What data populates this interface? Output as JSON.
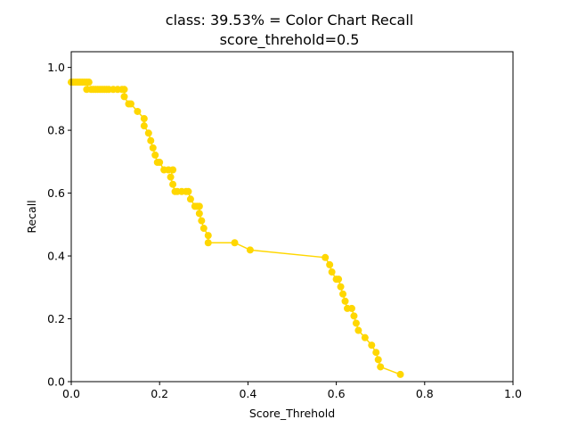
{
  "chart_data": {
    "type": "line",
    "title": "class: 39.53% = Color Chart Recall",
    "subtitle": "score_threhold=0.5",
    "xlabel": "Score_Threhold",
    "ylabel": "Recall",
    "xlim": [
      0.0,
      1.0
    ],
    "ylim": [
      0.0,
      1.05
    ],
    "xticks": [
      "0.0",
      "0.2",
      "0.4",
      "0.6",
      "0.8",
      "1.0"
    ],
    "yticks": [
      "0.0",
      "0.2",
      "0.4",
      "0.6",
      "0.8",
      "1.0"
    ],
    "grid": false,
    "series": [
      {
        "color": "#ffd700",
        "marker": "circle",
        "x": [
          0.0,
          0.005,
          0.01,
          0.015,
          0.02,
          0.025,
          0.03,
          0.035,
          0.04,
          0.035,
          0.045,
          0.05,
          0.055,
          0.06,
          0.065,
          0.07,
          0.075,
          0.08,
          0.085,
          0.095,
          0.105,
          0.115,
          0.12,
          0.12,
          0.13,
          0.135,
          0.15,
          0.165,
          0.165,
          0.175,
          0.18,
          0.185,
          0.19,
          0.195,
          0.2,
          0.21,
          0.22,
          0.23,
          0.225,
          0.23,
          0.235,
          0.24,
          0.25,
          0.26,
          0.265,
          0.27,
          0.28,
          0.285,
          0.29,
          0.29,
          0.295,
          0.3,
          0.31,
          0.31,
          0.37,
          0.405,
          0.575,
          0.585,
          0.59,
          0.6,
          0.605,
          0.61,
          0.615,
          0.62,
          0.625,
          0.635,
          0.64,
          0.645,
          0.65,
          0.665,
          0.68,
          0.69,
          0.695,
          0.7,
          0.745
        ],
        "y": [
          0.953,
          0.953,
          0.953,
          0.953,
          0.953,
          0.953,
          0.953,
          0.953,
          0.953,
          0.93,
          0.93,
          0.93,
          0.93,
          0.93,
          0.93,
          0.93,
          0.93,
          0.93,
          0.93,
          0.93,
          0.93,
          0.93,
          0.93,
          0.907,
          0.884,
          0.884,
          0.86,
          0.837,
          0.814,
          0.791,
          0.767,
          0.744,
          0.721,
          0.698,
          0.698,
          0.674,
          0.674,
          0.674,
          0.651,
          0.628,
          0.605,
          0.605,
          0.605,
          0.605,
          0.605,
          0.581,
          0.558,
          0.558,
          0.558,
          0.535,
          0.512,
          0.488,
          0.465,
          0.442,
          0.442,
          0.419,
          0.395,
          0.372,
          0.349,
          0.326,
          0.326,
          0.302,
          0.279,
          0.256,
          0.233,
          0.233,
          0.209,
          0.186,
          0.163,
          0.14,
          0.116,
          0.093,
          0.07,
          0.047,
          0.023
        ]
      }
    ]
  }
}
